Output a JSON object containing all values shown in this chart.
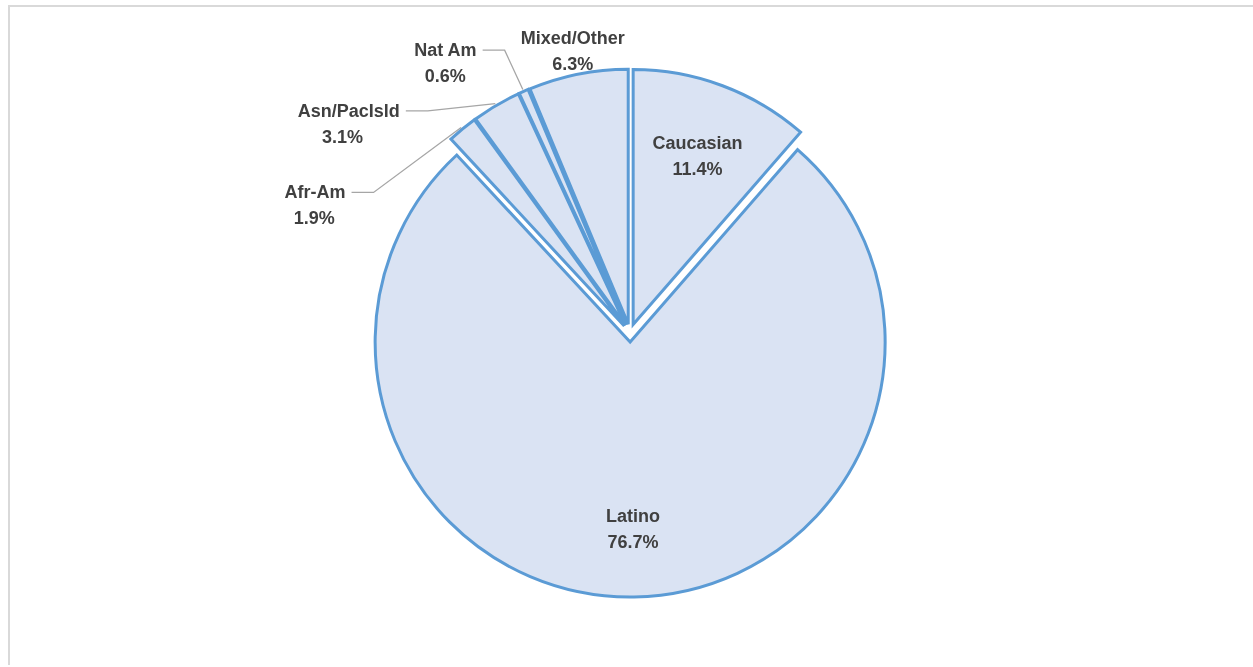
{
  "chart_data": {
    "type": "pie",
    "categories": [
      "Caucasian",
      "Latino",
      "Afr-Am",
      "Asn/PacIsld",
      "Nat Am",
      "Mixed/Other"
    ],
    "values": [
      11.4,
      76.7,
      1.9,
      3.1,
      0.6,
      6.3
    ],
    "colors": [
      "#dae3f3",
      "#dae3f3",
      "#dae3f3",
      "#dae3f3",
      "#dae3f3",
      "#dae3f3"
    ],
    "value_labels": [
      "11.4%",
      "76.7%",
      "1.9%",
      "3.1%",
      "0.6%",
      "6.3%"
    ]
  }
}
